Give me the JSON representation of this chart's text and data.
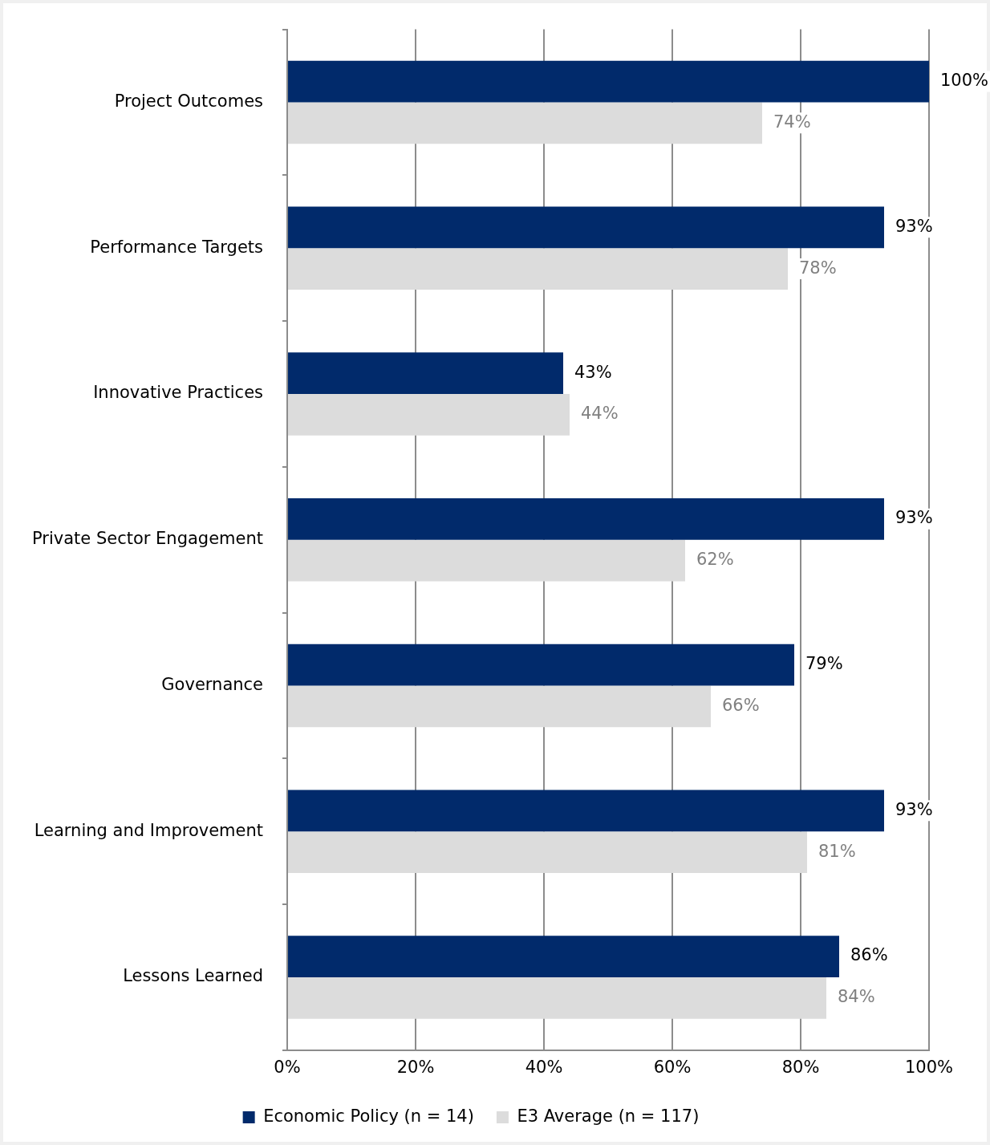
{
  "chart_data": {
    "type": "bar",
    "orientation": "horizontal",
    "categories": [
      "Project Outcomes",
      "Performance Targets",
      "Innovative Practices",
      "Private Sector Engagement",
      "Governance",
      "Learning and Improvement",
      "Lessons Learned"
    ],
    "series": [
      {
        "name": "Economic Policy (n = 14)",
        "color": "#012a6b",
        "values": [
          100,
          93,
          43,
          93,
          79,
          93,
          86
        ],
        "value_labels": [
          "100%",
          "93%",
          "43%",
          "93%",
          "79%",
          "93%",
          "86%"
        ]
      },
      {
        "name": "E3 Average (n = 117)",
        "color": "#dcdcdc",
        "values": [
          74,
          78,
          44,
          62,
          66,
          81,
          84
        ],
        "value_labels": [
          "74%",
          "78%",
          "44%",
          "62%",
          "66%",
          "81%",
          "84%"
        ]
      }
    ],
    "xlim": [
      0,
      100
    ],
    "xticks": [
      {
        "value": 0,
        "label": "0%"
      },
      {
        "value": 20,
        "label": "20%"
      },
      {
        "value": 40,
        "label": "40%"
      },
      {
        "value": 60,
        "label": "60%"
      },
      {
        "value": 80,
        "label": "80%"
      },
      {
        "value": 100,
        "label": "100%"
      }
    ],
    "grid": "x",
    "legend": "bottom"
  }
}
